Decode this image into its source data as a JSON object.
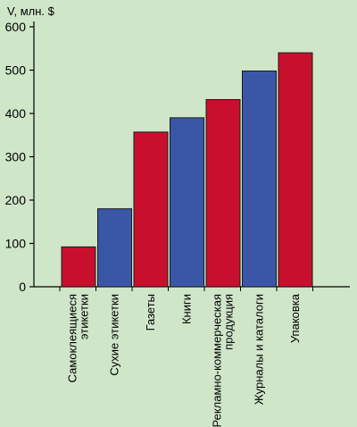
{
  "chart_data": {
    "type": "bar",
    "ylabel": "V, млн. $",
    "xlabel": "",
    "title": "",
    "ylim": [
      0,
      600
    ],
    "yticks": [
      0,
      100,
      200,
      300,
      400,
      500,
      600
    ],
    "grid": false,
    "categories": [
      [
        "Самоклеящиеся",
        "этикетки"
      ],
      [
        "Сухие этикетки"
      ],
      [
        "Газеты"
      ],
      [
        "Книги"
      ],
      [
        "Рекламно-коммерческая",
        "продукция"
      ],
      [
        "Журналы и каталоги"
      ],
      [
        "Упаковка"
      ]
    ],
    "values": [
      92,
      180,
      357,
      390,
      432,
      498,
      540
    ],
    "bar_colors": [
      "#c8102e",
      "#3a57a7",
      "#c8102e",
      "#3a57a7",
      "#c8102e",
      "#3a57a7",
      "#c8102e"
    ]
  },
  "colors": {
    "background": "#cfe6c9",
    "axis": "#000000",
    "red": "#c8102e",
    "blue": "#3a57a7"
  }
}
